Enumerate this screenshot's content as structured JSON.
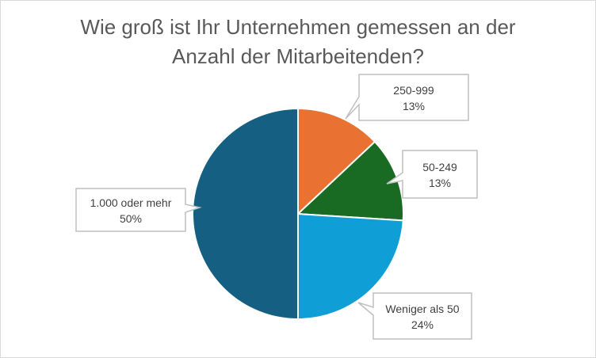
{
  "chart_data": {
    "type": "pie",
    "title_line1": "Wie groß ist Ihr Unternehmen gemessen an der",
    "title_line2": "Anzahl der Mitarbeitenden?",
    "slices": [
      {
        "label": "250-999",
        "value": 13,
        "value_label": "13%",
        "color": "#e97132"
      },
      {
        "label": "50-249",
        "value": 13,
        "value_label": "13%",
        "color": "#196b24"
      },
      {
        "label": "Weniger als 50",
        "value": 24,
        "value_label": "24%",
        "color": "#0f9ed5"
      },
      {
        "label": "1.000 oder mehr",
        "value": 50,
        "value_label": "50%",
        "color": "#156082"
      }
    ],
    "start_angle_deg": 0,
    "direction": "clockwise",
    "legend": "none"
  }
}
